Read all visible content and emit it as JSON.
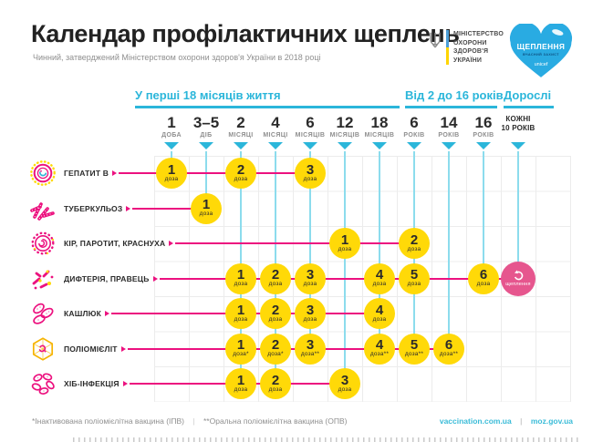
{
  "page": {
    "title": "Календар профілактичних щеплень",
    "subtitle": "Чинний, затверджений Міністерством охорони здоров'я України в 2018 році"
  },
  "logos": {
    "ministry": {
      "line1": "МІНІСТЕРСТВО",
      "line2": "ОХОРОНИ",
      "line3": "ЗДОРОВ'Я",
      "line4": "УКРАЇНИ"
    },
    "heart": {
      "title": "ЩЕПЛЕННЯ",
      "subtitle": "ВЧАСНИЙ ЗАХИСТ",
      "brand": "unicef"
    }
  },
  "footer": {
    "footnote_ipv": "*Інактивована поліомієлітна вакцина (ІПВ)",
    "footnote_opv": "**Оральна поліомієлітна вакцина (ОПВ)",
    "separator": "|",
    "link_vaccination": "vaccination.com.ua",
    "link_moz": "moz.gov.ua"
  },
  "colors": {
    "accent_cyan": "#2bb6da",
    "accent_magenta": "#ec117f",
    "dose_yellow": "#ffd908",
    "booster_pink": "#e6568e",
    "heart_blue": "#29abe2",
    "flag_blue": "#4d9fd8",
    "flag_yellow": "#ffd500"
  },
  "chart_data": {
    "type": "table",
    "title": "Календар профілактичних щеплень",
    "groups": [
      {
        "label": "У перші 18 місяців життя",
        "columns": [
          0,
          6
        ]
      },
      {
        "label": "Від 2 до 16 років",
        "columns": [
          7,
          9
        ]
      },
      {
        "label": "Дорослі",
        "columns": [
          10,
          10
        ]
      }
    ],
    "columns": [
      {
        "value": "1",
        "unit": "ДОБА"
      },
      {
        "value": "3–5",
        "unit": "ДІБ"
      },
      {
        "value": "2",
        "unit": "МІСЯЦІ"
      },
      {
        "value": "4",
        "unit": "МІСЯЦІ"
      },
      {
        "value": "6",
        "unit": "МІСЯЦІВ"
      },
      {
        "value": "12",
        "unit": "МІСЯЦІВ"
      },
      {
        "value": "18",
        "unit": "МІСЯЦІВ"
      },
      {
        "value": "6",
        "unit": "РОКІВ"
      },
      {
        "value": "14",
        "unit": "РОКІВ"
      },
      {
        "value": "16",
        "unit": "РОКІВ"
      },
      {
        "value": "КОЖНІ",
        "unit": "10 РОКІВ",
        "variant": "text"
      }
    ],
    "dose_word": "доза",
    "rows": [
      {
        "label": "ГЕПАТИТ В",
        "icon": "hepatitis-virus",
        "doses": [
          {
            "col": 0,
            "dose": "1"
          },
          {
            "col": 2,
            "dose": "2"
          },
          {
            "col": 4,
            "dose": "3"
          }
        ]
      },
      {
        "label": "ТУБЕРКУЛЬОЗ",
        "icon": "tuberculosis-bacteria",
        "doses": [
          {
            "col": 1,
            "dose": "1"
          }
        ]
      },
      {
        "label": "КІР, ПАРОТИТ, КРАСНУХА",
        "icon": "measles-virus",
        "doses": [
          {
            "col": 5,
            "dose": "1"
          },
          {
            "col": 7,
            "dose": "2"
          }
        ]
      },
      {
        "label": "ДИФТЕРІЯ, ПРАВЕЦЬ",
        "icon": "diphtheria-bacteria",
        "doses": [
          {
            "col": 2,
            "dose": "1"
          },
          {
            "col": 3,
            "dose": "2"
          },
          {
            "col": 4,
            "dose": "3"
          },
          {
            "col": 6,
            "dose": "4"
          },
          {
            "col": 7,
            "dose": "5"
          },
          {
            "col": 9,
            "dose": "6"
          }
        ],
        "booster": {
          "col": 10,
          "label": "щеплення"
        }
      },
      {
        "label": "КАШЛЮК",
        "icon": "pertussis-bacteria",
        "doses": [
          {
            "col": 2,
            "dose": "1"
          },
          {
            "col": 3,
            "dose": "2"
          },
          {
            "col": 4,
            "dose": "3"
          },
          {
            "col": 6,
            "dose": "4"
          }
        ]
      },
      {
        "label": "ПОЛІОМІЄЛІТ",
        "icon": "polio-virus",
        "doses": [
          {
            "col": 2,
            "dose": "1",
            "suffix": "*"
          },
          {
            "col": 3,
            "dose": "2",
            "suffix": "*"
          },
          {
            "col": 4,
            "dose": "3",
            "suffix": "**"
          },
          {
            "col": 6,
            "dose": "4",
            "suffix": "**"
          },
          {
            "col": 7,
            "dose": "5",
            "suffix": "**"
          },
          {
            "col": 8,
            "dose": "6",
            "suffix": "**"
          }
        ]
      },
      {
        "label": "ХІБ-ІНФЕКЦІЯ",
        "icon": "hib-bacteria",
        "doses": [
          {
            "col": 2,
            "dose": "1"
          },
          {
            "col": 3,
            "dose": "2"
          },
          {
            "col": 5,
            "dose": "3"
          }
        ]
      }
    ]
  }
}
